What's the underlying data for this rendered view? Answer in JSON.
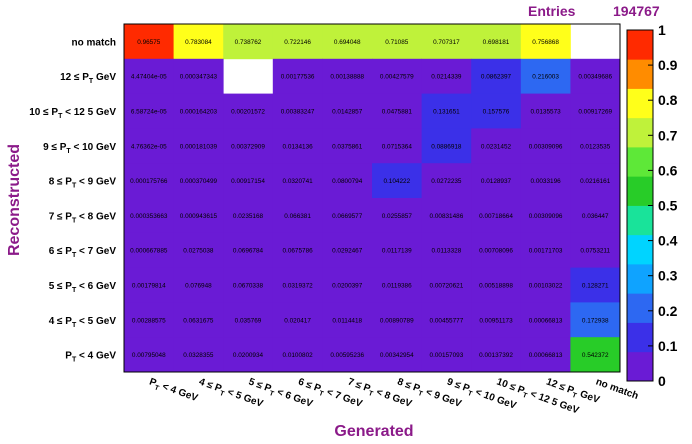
{
  "stats": {
    "label": "Entries",
    "value": "194767"
  },
  "chart_data": {
    "type": "heatmap",
    "xlabel": "Generated",
    "ylabel": "Reconstructed",
    "x_categories": [
      "P_T < 4 GeV",
      "4 ≤ P_T < 5 GeV",
      "5 ≤ P_T < 6 GeV",
      "6 ≤ P_T < 7 GeV",
      "7 ≤ P_T < 8 GeV",
      "8 ≤ P_T < 9 GeV",
      "9 ≤ P_T < 10 GeV",
      "10 ≤ P_T < 12 5 GeV",
      "12 ≤ P_T GeV",
      "no match"
    ],
    "y_categories": [
      "no match",
      "12 ≤ P_T GeV",
      "10 ≤ P_T < 12 5 GeV",
      "9 ≤ P_T < 10 GeV",
      "8 ≤ P_T < 9 GeV",
      "7 ≤ P_T < 8 GeV",
      "6 ≤ P_T < 7 GeV",
      "5 ≤ P_T < 6 GeV",
      "4 ≤ P_T < 5 GeV",
      "P_T < 4 GeV"
    ],
    "cells": [
      [
        "0.96575",
        "0.783084",
        "0.738762",
        "0.722146",
        "0.694048",
        "0.71085",
        "0.707317",
        "0.698181",
        "0.756868",
        ""
      ],
      [
        "4.47404e-05",
        "0.000347343",
        "",
        "0.00177536",
        "0.00138888",
        "0.00427579",
        "0.0214339",
        "0.0862397",
        "0.216003",
        "0.00349686"
      ],
      [
        "6.58724e-05",
        "0.000164203",
        "0.00201572",
        "0.00383247",
        "0.0142857",
        "0.0475881",
        "0.131651",
        "0.157576",
        "0.0135573",
        "0.00917269"
      ],
      [
        "4.76362e-05",
        "0.000181039",
        "0.00372909",
        "0.0134136",
        "0.0375861",
        "0.0715364",
        "0.0886918",
        "0.0231452",
        "0.00309096",
        "0.0123535"
      ],
      [
        "0.000175766",
        "0.000370499",
        "0.00917154",
        "0.0320741",
        "0.0800794",
        "0.104222",
        "0.0272235",
        "0.0128937",
        "0.0033196",
        "0.0216161"
      ],
      [
        "0.000353663",
        "0.000943615",
        "0.0235168",
        "0.066381",
        "0.0669577",
        "0.0255857",
        "0.00831486",
        "0.00718664",
        "0.00309096",
        "0.036447"
      ],
      [
        "0.000667885",
        "0.0275038",
        "0.0696784",
        "0.0675786",
        "0.0292467",
        "0.0117139",
        "0.0113328",
        "0.00708096",
        "0.00171703",
        "0.0753211"
      ],
      [
        "0.00179814",
        "0.076948",
        "0.0670338",
        "0.0319372",
        "0.0200397",
        "0.0119386",
        "0.00720621",
        "0.00518898",
        "0.00103022",
        "0.128271"
      ],
      [
        "0.00288575",
        "0.0631675",
        "0.035769",
        "0.020417",
        "0.0114418",
        "0.00890789",
        "0.00455777",
        "0.00951173",
        "0.00066813",
        "0.172938"
      ],
      [
        "0.00795048",
        "0.0328355",
        "0.0200934",
        "0.0100802",
        "0.00595236",
        "0.00342954",
        "0.00157093",
        "0.00137392",
        "0.00066813",
        "0.542372"
      ]
    ],
    "zlim": [
      0,
      1
    ],
    "z_ticks": [
      "0",
      "0.1",
      "0.2",
      "0.3",
      "0.4",
      "0.5",
      "0.6",
      "0.7",
      "0.8",
      "0.9",
      "1"
    ],
    "palette": [
      "#6a1bd5",
      "#3b30e8",
      "#2d68f2",
      "#0fa3ff",
      "#00d4ff",
      "#19e39a",
      "#28cc28",
      "#5ee838",
      "#bff23a",
      "#ffff1a",
      "#ff8c00",
      "#ff2a00"
    ],
    "colors": {
      "title_text": "#8b1a89",
      "empty_cell": "#ffffff"
    }
  }
}
